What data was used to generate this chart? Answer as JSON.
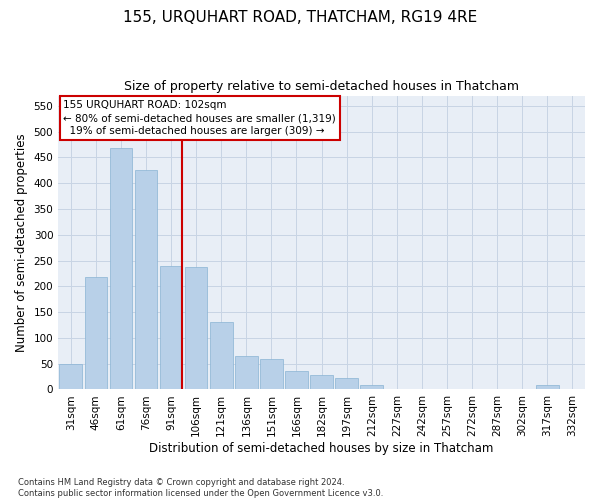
{
  "title": "155, URQUHART ROAD, THATCHAM, RG19 4RE",
  "subtitle": "Size of property relative to semi-detached houses in Thatcham",
  "xlabel": "Distribution of semi-detached houses by size in Thatcham",
  "ylabel": "Number of semi-detached properties",
  "categories": [
    "31sqm",
    "46sqm",
    "61sqm",
    "76sqm",
    "91sqm",
    "106sqm",
    "121sqm",
    "136sqm",
    "151sqm",
    "166sqm",
    "182sqm",
    "197sqm",
    "212sqm",
    "227sqm",
    "242sqm",
    "257sqm",
    "272sqm",
    "287sqm",
    "302sqm",
    "317sqm",
    "332sqm"
  ],
  "values": [
    50,
    218,
    468,
    425,
    240,
    238,
    130,
    65,
    60,
    35,
    28,
    22,
    8,
    0,
    0,
    0,
    0,
    0,
    0,
    8,
    0
  ],
  "bar_color": "#b8d0e8",
  "bar_edge_color": "#8ab4d4",
  "grid_color": "#c8d4e4",
  "bg_color": "#e8eef6",
  "annotation_text": "155 URQUHART ROAD: 102sqm\n← 80% of semi-detached houses are smaller (1,319)\n  19% of semi-detached houses are larger (309) →",
  "annotation_box_color": "#ffffff",
  "annotation_box_edge": "#cc0000",
  "vline_color": "#cc0000",
  "ylim": [
    0,
    570
  ],
  "yticks": [
    0,
    50,
    100,
    150,
    200,
    250,
    300,
    350,
    400,
    450,
    500,
    550
  ],
  "footer": "Contains HM Land Registry data © Crown copyright and database right 2024.\nContains public sector information licensed under the Open Government Licence v3.0.",
  "title_fontsize": 11,
  "subtitle_fontsize": 9,
  "axis_label_fontsize": 8.5,
  "tick_fontsize": 7.5
}
